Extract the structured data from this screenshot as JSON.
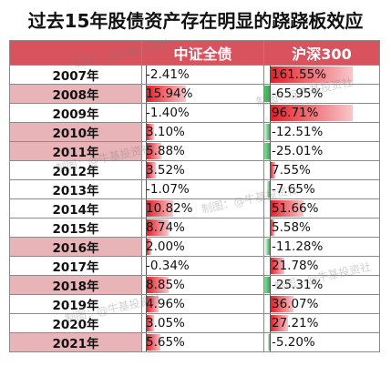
{
  "title": "过去15年股债资产存在明显的跷跷板效应",
  "headers": {
    "year": "",
    "bond": "中证全债",
    "stock": "沪深300"
  },
  "watermark": "制图：@牛基投资社",
  "colors": {
    "header": "#d9535e",
    "year_highlight": "#e8b4b8",
    "positive": "#e7202a",
    "negative": "#2fb34d"
  },
  "rows": [
    {
      "year": "2007年",
      "bond": "-2.41%",
      "bond_v": -2.41,
      "stock": "161.55%",
      "stock_v": 161.55,
      "highlight": false
    },
    {
      "year": "2008年",
      "bond": "15.94%",
      "bond_v": 15.94,
      "stock": "-65.95%",
      "stock_v": -65.95,
      "highlight": true
    },
    {
      "year": "2009年",
      "bond": "-1.40%",
      "bond_v": -1.4,
      "stock": "96.71%",
      "stock_v": 96.71,
      "highlight": false
    },
    {
      "year": "2010年",
      "bond": "3.10%",
      "bond_v": 3.1,
      "stock": "-12.51%",
      "stock_v": -12.51,
      "highlight": true
    },
    {
      "year": "2011年",
      "bond": "5.88%",
      "bond_v": 5.88,
      "stock": "-25.01%",
      "stock_v": -25.01,
      "highlight": true
    },
    {
      "year": "2012年",
      "bond": "3.52%",
      "bond_v": 3.52,
      "stock": "7.55%",
      "stock_v": 7.55,
      "highlight": false
    },
    {
      "year": "2013年",
      "bond": "-1.07%",
      "bond_v": -1.07,
      "stock": "-7.65%",
      "stock_v": -7.65,
      "highlight": false
    },
    {
      "year": "2014年",
      "bond": "10.82%",
      "bond_v": 10.82,
      "stock": "51.66%",
      "stock_v": 51.66,
      "highlight": false
    },
    {
      "year": "2015年",
      "bond": "8.74%",
      "bond_v": 8.74,
      "stock": "5.58%",
      "stock_v": 5.58,
      "highlight": false
    },
    {
      "year": "2016年",
      "bond": "2.00%",
      "bond_v": 2.0,
      "stock": "-11.28%",
      "stock_v": -11.28,
      "highlight": true
    },
    {
      "year": "2017年",
      "bond": "-0.34%",
      "bond_v": -0.34,
      "stock": "21.78%",
      "stock_v": 21.78,
      "highlight": false
    },
    {
      "year": "2018年",
      "bond": "8.85%",
      "bond_v": 8.85,
      "stock": "-25.31%",
      "stock_v": -25.31,
      "highlight": true
    },
    {
      "year": "2019年",
      "bond": "4.96%",
      "bond_v": 4.96,
      "stock": "36.07%",
      "stock_v": 36.07,
      "highlight": false
    },
    {
      "year": "2020年",
      "bond": "3.05%",
      "bond_v": 3.05,
      "stock": "27.21%",
      "stock_v": 27.21,
      "highlight": false
    },
    {
      "year": "2021年",
      "bond": "5.65%",
      "bond_v": 5.65,
      "stock": "-5.20%",
      "stock_v": -5.2,
      "highlight": true
    }
  ]
}
